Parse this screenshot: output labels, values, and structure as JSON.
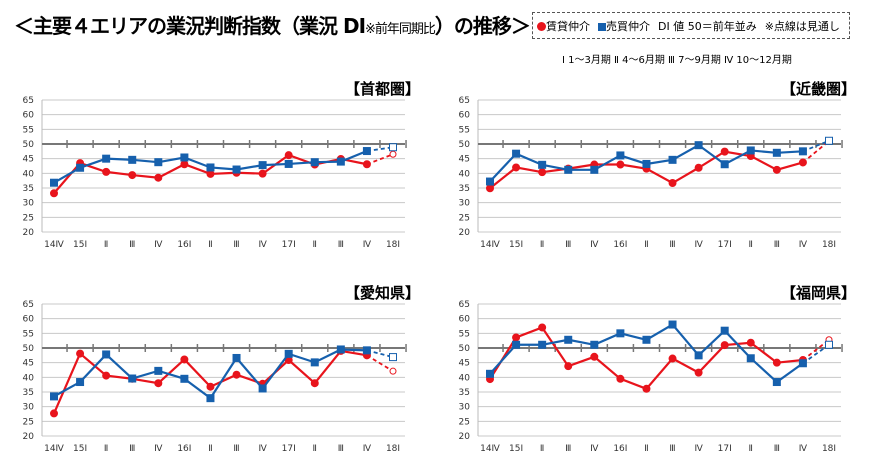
{
  "header": {
    "title": "＜主要４エリアの業況判断指数（業況 DI",
    "title_note": "※前年同期比",
    "title_end": "）の推移＞"
  },
  "legend": {
    "chintai": "賃貸仲介",
    "baibai": "売買仲介",
    "di_note": "DI 値 50＝前年並み",
    "dotted_note": "※点線は見通し",
    "colors": {
      "chintai": "#e8141c",
      "baibai": "#1660ad"
    }
  },
  "periods": "Ⅰ 1～3月期  Ⅱ 4～6月期  Ⅲ 7～9月期  Ⅳ 10～12月期",
  "chart_data": [
    {
      "type": "line",
      "title": "【首都圏】",
      "categories": [
        "14Ⅳ",
        "15Ⅰ",
        "Ⅱ",
        "Ⅲ",
        "Ⅳ",
        "16Ⅰ",
        "Ⅱ",
        "Ⅲ",
        "Ⅳ",
        "17Ⅰ",
        "Ⅱ",
        "Ⅲ",
        "Ⅳ",
        "18Ⅰ"
      ],
      "ylim": [
        20,
        65
      ],
      "yticks": [
        20,
        25,
        30,
        35,
        40,
        45,
        50,
        55,
        60,
        65
      ],
      "reference_line": 50,
      "forecast_last": true,
      "series": [
        {
          "name": "賃貸仲介",
          "values": [
            33.2,
            43.5,
            40.5,
            39.4,
            38.5,
            43.1,
            39.8,
            40.2,
            39.9,
            46.2,
            43.0,
            44.9,
            43.1,
            46.5
          ]
        },
        {
          "name": "売買仲介",
          "values": [
            36.8,
            41.9,
            45.0,
            44.6,
            43.8,
            45.4,
            42.0,
            41.3,
            42.8,
            43.2,
            43.8,
            44.0,
            47.6,
            48.9
          ]
        }
      ]
    },
    {
      "type": "line",
      "title": "【近畿圏】",
      "categories": [
        "14Ⅳ",
        "15Ⅰ",
        "Ⅱ",
        "Ⅲ",
        "Ⅳ",
        "16Ⅰ",
        "Ⅱ",
        "Ⅲ",
        "Ⅳ",
        "17Ⅰ",
        "Ⅱ",
        "Ⅲ",
        "Ⅳ",
        "18Ⅰ"
      ],
      "ylim": [
        20,
        65
      ],
      "yticks": [
        20,
        25,
        30,
        35,
        40,
        45,
        50,
        55,
        60,
        65
      ],
      "reference_line": 50,
      "forecast_last": true,
      "series": [
        {
          "name": "賃貸仲介",
          "values": [
            34.9,
            42.0,
            40.4,
            41.6,
            43.0,
            43.0,
            41.6,
            36.7,
            41.9,
            47.4,
            45.9,
            41.2,
            43.7,
            51.0
          ]
        },
        {
          "name": "売買仲介",
          "values": [
            37.2,
            46.7,
            42.9,
            41.2,
            41.2,
            46.1,
            43.2,
            44.6,
            49.6,
            43.1,
            47.8,
            47.0,
            47.5,
            51.1
          ]
        }
      ]
    },
    {
      "type": "line",
      "title": "【愛知県】",
      "categories": [
        "14Ⅳ",
        "15Ⅰ",
        "Ⅱ",
        "Ⅲ",
        "Ⅳ",
        "16Ⅰ",
        "Ⅱ",
        "Ⅲ",
        "Ⅳ",
        "17Ⅰ",
        "Ⅱ",
        "Ⅲ",
        "Ⅳ",
        "18Ⅰ"
      ],
      "ylim": [
        20,
        65
      ],
      "yticks": [
        20,
        25,
        30,
        35,
        40,
        45,
        50,
        55,
        60,
        65
      ],
      "reference_line": 50,
      "forecast_last": true,
      "series": [
        {
          "name": "賃貸仲介",
          "values": [
            27.7,
            48.1,
            40.6,
            39.5,
            38.0,
            46.1,
            36.8,
            40.9,
            37.8,
            45.9,
            38.0,
            49.0,
            47.5,
            42.1
          ]
        },
        {
          "name": "売買仲介",
          "values": [
            33.5,
            38.4,
            47.8,
            39.6,
            42.2,
            39.5,
            32.9,
            46.6,
            36.2,
            48.0,
            45.1,
            49.5,
            49.2,
            46.9
          ]
        }
      ]
    },
    {
      "type": "line",
      "title": "【福岡県】",
      "categories": [
        "14Ⅳ",
        "15Ⅰ",
        "Ⅱ",
        "Ⅲ",
        "Ⅳ",
        "16Ⅰ",
        "Ⅱ",
        "Ⅲ",
        "Ⅳ",
        "17Ⅰ",
        "Ⅱ",
        "Ⅲ",
        "Ⅳ",
        "18Ⅰ"
      ],
      "ylim": [
        20,
        65
      ],
      "yticks": [
        20,
        25,
        30,
        35,
        40,
        45,
        50,
        55,
        60,
        65
      ],
      "reference_line": 50,
      "forecast_last": true,
      "series": [
        {
          "name": "賃貸仲介",
          "values": [
            39.4,
            53.6,
            57.0,
            43.8,
            47.0,
            39.5,
            36.1,
            46.4,
            41.6,
            51.0,
            51.8,
            45.0,
            45.9,
            52.8
          ]
        },
        {
          "name": "売買仲介",
          "values": [
            41.2,
            51.1,
            51.1,
            52.8,
            51.1,
            55.0,
            52.8,
            58.0,
            47.5,
            55.9,
            46.5,
            38.4,
            44.8,
            51.1
          ]
        }
      ]
    }
  ]
}
